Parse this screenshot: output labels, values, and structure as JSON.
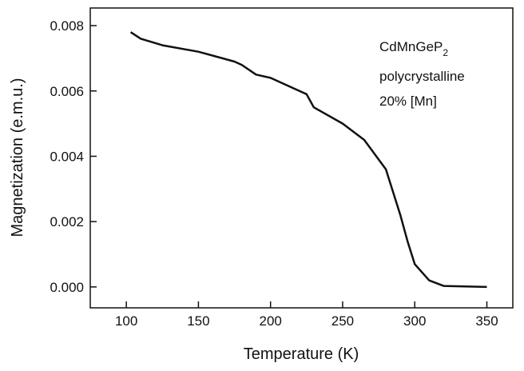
{
  "chart_data": {
    "type": "line",
    "x_label": "Temperature (K)",
    "y_label": "Magnetization (e.m.u.)",
    "annotation": {
      "formula": "CdMnGeP",
      "subscript": "2",
      "lines": [
        "polycrystalline",
        "20% [Mn]"
      ]
    },
    "x": [
      103,
      110,
      125,
      150,
      175,
      180,
      190,
      200,
      225,
      230,
      250,
      265,
      280,
      290,
      295,
      300,
      310,
      320,
      350
    ],
    "series": [
      {
        "color": "#111111",
        "values": [
          0.0078,
          0.0076,
          0.0074,
          0.0072,
          0.0069,
          0.0068,
          0.0065,
          0.0064,
          0.0059,
          0.0055,
          0.005,
          0.0045,
          0.0036,
          0.0022,
          0.0014,
          0.0007,
          0.0002,
          3e-05,
          0
        ]
      }
    ],
    "xlim": [
      75,
      368
    ],
    "xticks": [
      100,
      150,
      200,
      250,
      300,
      350
    ],
    "ylim": [
      -0.00064,
      0.00854
    ],
    "yticks": [
      {
        "value": 0,
        "label": "0.000"
      },
      0.002,
      0.004,
      0.006,
      0.008
    ],
    "grid": false
  }
}
